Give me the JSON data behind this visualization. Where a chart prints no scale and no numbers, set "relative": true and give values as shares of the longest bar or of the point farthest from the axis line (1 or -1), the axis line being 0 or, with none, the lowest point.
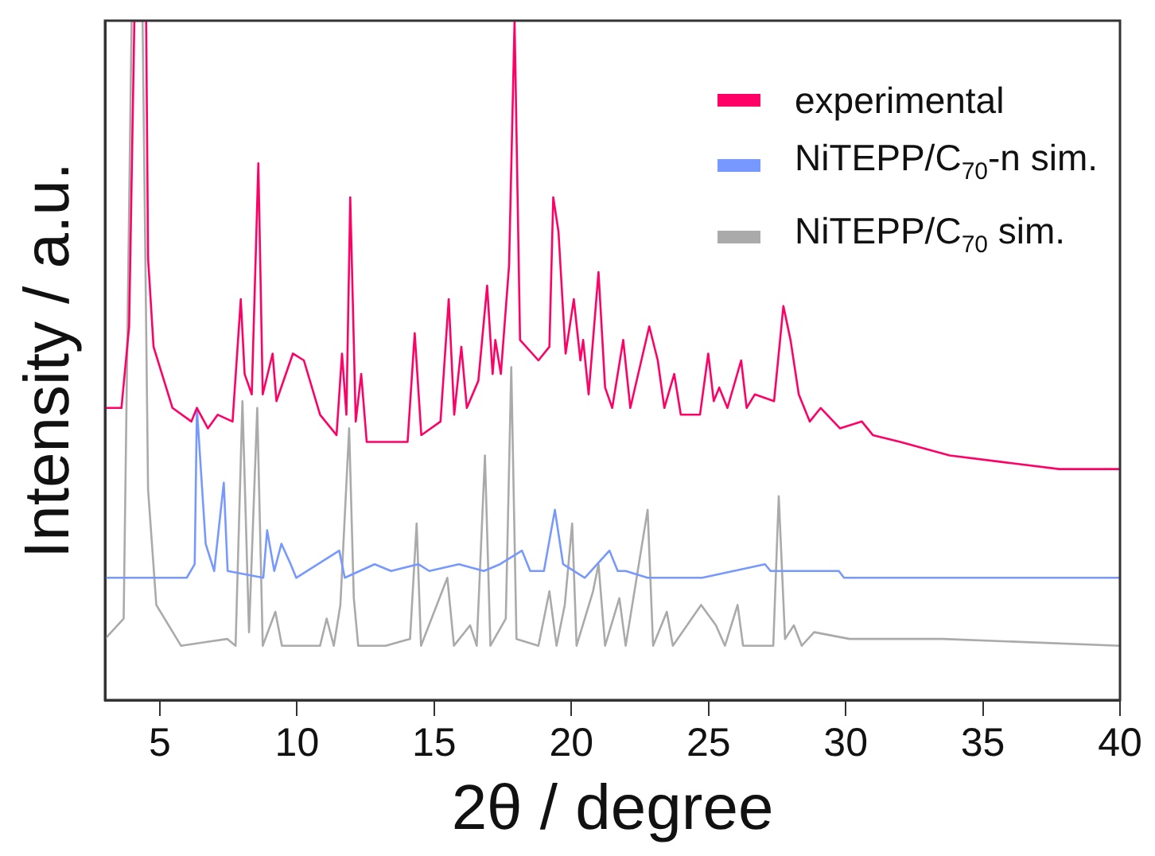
{
  "chart_data": {
    "type": "line",
    "xlabel": "2θ / degree",
    "ylabel": "Intensity / a.u.",
    "relative": true,
    "xlim": [
      3,
      40
    ],
    "xticks": [
      5,
      10,
      15,
      20,
      25,
      30,
      35,
      40
    ],
    "tick_labels": "x",
    "grid": false,
    "legend": "top right",
    "marker": "none",
    "line_style": "solid",
    "series": [
      {
        "name": "experimental",
        "color": "#ff0066",
        "x": [
          3.0,
          3.6,
          3.88,
          4.07,
          4.5,
          4.57,
          4.77,
          5.46,
          6.15,
          6.35,
          6.75,
          7.11,
          7.65,
          7.95,
          8.09,
          8.35,
          8.59,
          8.75,
          9.11,
          9.25,
          9.85,
          10.25,
          10.84,
          11.44,
          11.64,
          11.8,
          11.94,
          12.14,
          12.34,
          12.54,
          14.03,
          14.29,
          14.53,
          15.23,
          15.53,
          15.73,
          15.99,
          16.19,
          16.61,
          16.93,
          17.13,
          17.23,
          17.43,
          17.73,
          17.93,
          18.13,
          18.8,
          19.2,
          19.34,
          19.53,
          19.79,
          20.09,
          20.33,
          20.43,
          20.63,
          20.99,
          21.23,
          21.49,
          21.89,
          22.15,
          22.84,
          23.15,
          23.39,
          23.75,
          23.99,
          24.69,
          24.99,
          25.19,
          25.39,
          25.69,
          26.19,
          26.39,
          26.69,
          27.39,
          27.73,
          27.99,
          28.29,
          28.69,
          29.09,
          29.79,
          30.59,
          30.99,
          31.99,
          33.79,
          35.79,
          37.78,
          40.0
        ],
        "values": [
          0.43,
          0.43,
          0.55,
          1,
          1,
          0.65,
          0.52,
          0.43,
          0.41,
          0.43,
          0.4,
          0.42,
          0.41,
          0.59,
          0.48,
          0.45,
          0.79,
          0.45,
          0.51,
          0.44,
          0.51,
          0.5,
          0.42,
          0.39,
          0.51,
          0.42,
          0.74,
          0.41,
          0.48,
          0.38,
          0.38,
          0.54,
          0.39,
          0.41,
          0.59,
          0.42,
          0.52,
          0.43,
          0.47,
          0.61,
          0.48,
          0.53,
          0.48,
          0.64,
          1,
          0.53,
          0.5,
          0.52,
          0.74,
          0.69,
          0.51,
          0.59,
          0.5,
          0.53,
          0.45,
          0.63,
          0.46,
          0.43,
          0.53,
          0.43,
          0.55,
          0.5,
          0.43,
          0.48,
          0.42,
          0.42,
          0.51,
          0.44,
          0.46,
          0.43,
          0.5,
          0.43,
          0.45,
          0.44,
          0.58,
          0.53,
          0.45,
          0.41,
          0.43,
          0.4,
          0.41,
          0.39,
          0.38,
          0.36,
          0.35,
          0.34,
          0.34
        ]
      },
      {
        "name": "NiTEPP/C$_{70}$-n sim.",
        "color": "#7799ff",
        "x": [
          3.0,
          5.98,
          6.27,
          6.35,
          6.67,
          6.98,
          7.33,
          7.47,
          8.77,
          8.91,
          9.17,
          9.43,
          9.77,
          9.97,
          11.54,
          11.74,
          12.83,
          13.43,
          14.42,
          14.82,
          15.9,
          16.81,
          17.4,
          18.2,
          18.5,
          19.0,
          19.4,
          19.7,
          20.49,
          21.39,
          21.69,
          21.98,
          22.78,
          24.77,
          27.06,
          27.26,
          28.05,
          29.75,
          29.94,
          40.0
        ],
        "values": [
          0.18,
          0.18,
          0.2,
          0.43,
          0.23,
          0.19,
          0.32,
          0.19,
          0.18,
          0.25,
          0.19,
          0.23,
          0.2,
          0.18,
          0.22,
          0.18,
          0.2,
          0.19,
          0.2,
          0.19,
          0.2,
          0.19,
          0.2,
          0.22,
          0.19,
          0.19,
          0.28,
          0.2,
          0.18,
          0.22,
          0.19,
          0.19,
          0.18,
          0.18,
          0.2,
          0.19,
          0.19,
          0.19,
          0.18,
          0.18
        ]
      },
      {
        "name": "NiTEPP/C$_{70}$ sim.",
        "color": "#aaaaaa",
        "x": [
          3.0,
          3.68,
          3.97,
          4.37,
          4.57,
          4.87,
          5.77,
          7.46,
          7.76,
          8.01,
          8.25,
          8.55,
          8.75,
          9.21,
          9.45,
          10.84,
          11.08,
          11.34,
          11.58,
          11.9,
          12.07,
          12.23,
          13.23,
          14.12,
          14.36,
          14.52,
          15.48,
          15.72,
          16.31,
          16.55,
          16.85,
          17.05,
          17.61,
          17.81,
          18.0,
          18.8,
          19.2,
          19.46,
          19.76,
          20.03,
          20.19,
          20.79,
          20.99,
          21.23,
          21.75,
          21.98,
          22.78,
          22.98,
          23.48,
          23.7,
          24.73,
          25.27,
          25.6,
          26.06,
          26.26,
          27.36,
          27.56,
          27.79,
          28.11,
          28.4,
          28.85,
          30.14,
          33.53,
          40.0
        ],
        "values": [
          0.09,
          0.12,
          1,
          1,
          0.31,
          0.14,
          0.08,
          0.09,
          0.08,
          0.44,
          0.1,
          0.43,
          0.08,
          0.13,
          0.08,
          0.08,
          0.12,
          0.08,
          0.14,
          0.4,
          0.15,
          0.08,
          0.08,
          0.09,
          0.26,
          0.08,
          0.18,
          0.08,
          0.11,
          0.08,
          0.36,
          0.08,
          0.12,
          0.49,
          0.09,
          0.08,
          0.16,
          0.08,
          0.14,
          0.26,
          0.08,
          0.16,
          0.2,
          0.08,
          0.15,
          0.08,
          0.28,
          0.08,
          0.13,
          0.08,
          0.14,
          0.11,
          0.08,
          0.14,
          0.08,
          0.08,
          0.3,
          0.09,
          0.11,
          0.08,
          0.1,
          0.09,
          0.09,
          0.08
        ]
      }
    ]
  }
}
